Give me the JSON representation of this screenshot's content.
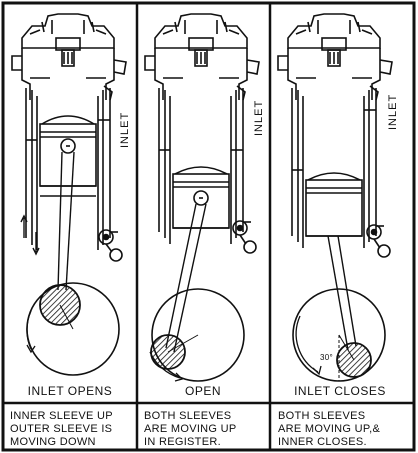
{
  "panels": [
    {
      "side_label": "INLET",
      "title": "INLET OPENS",
      "caption": [
        "INNER SLEEVE UP",
        "OUTER SLEEVE IS",
        "MOVING DOWN"
      ]
    },
    {
      "side_label": "INLET",
      "title": "OPEN",
      "caption": [
        "BOTH SLEEVES",
        "ARE MOVING UP",
        "IN REGISTER."
      ]
    },
    {
      "side_label": "INLET",
      "title": "INLET CLOSES",
      "caption": [
        "BOTH SLEEVES",
        "ARE MOVING UP,&",
        "INNER CLOSES."
      ]
    }
  ],
  "angle_label": "30°",
  "colors": {
    "ink": "#111111",
    "paper": "#ffffff"
  }
}
